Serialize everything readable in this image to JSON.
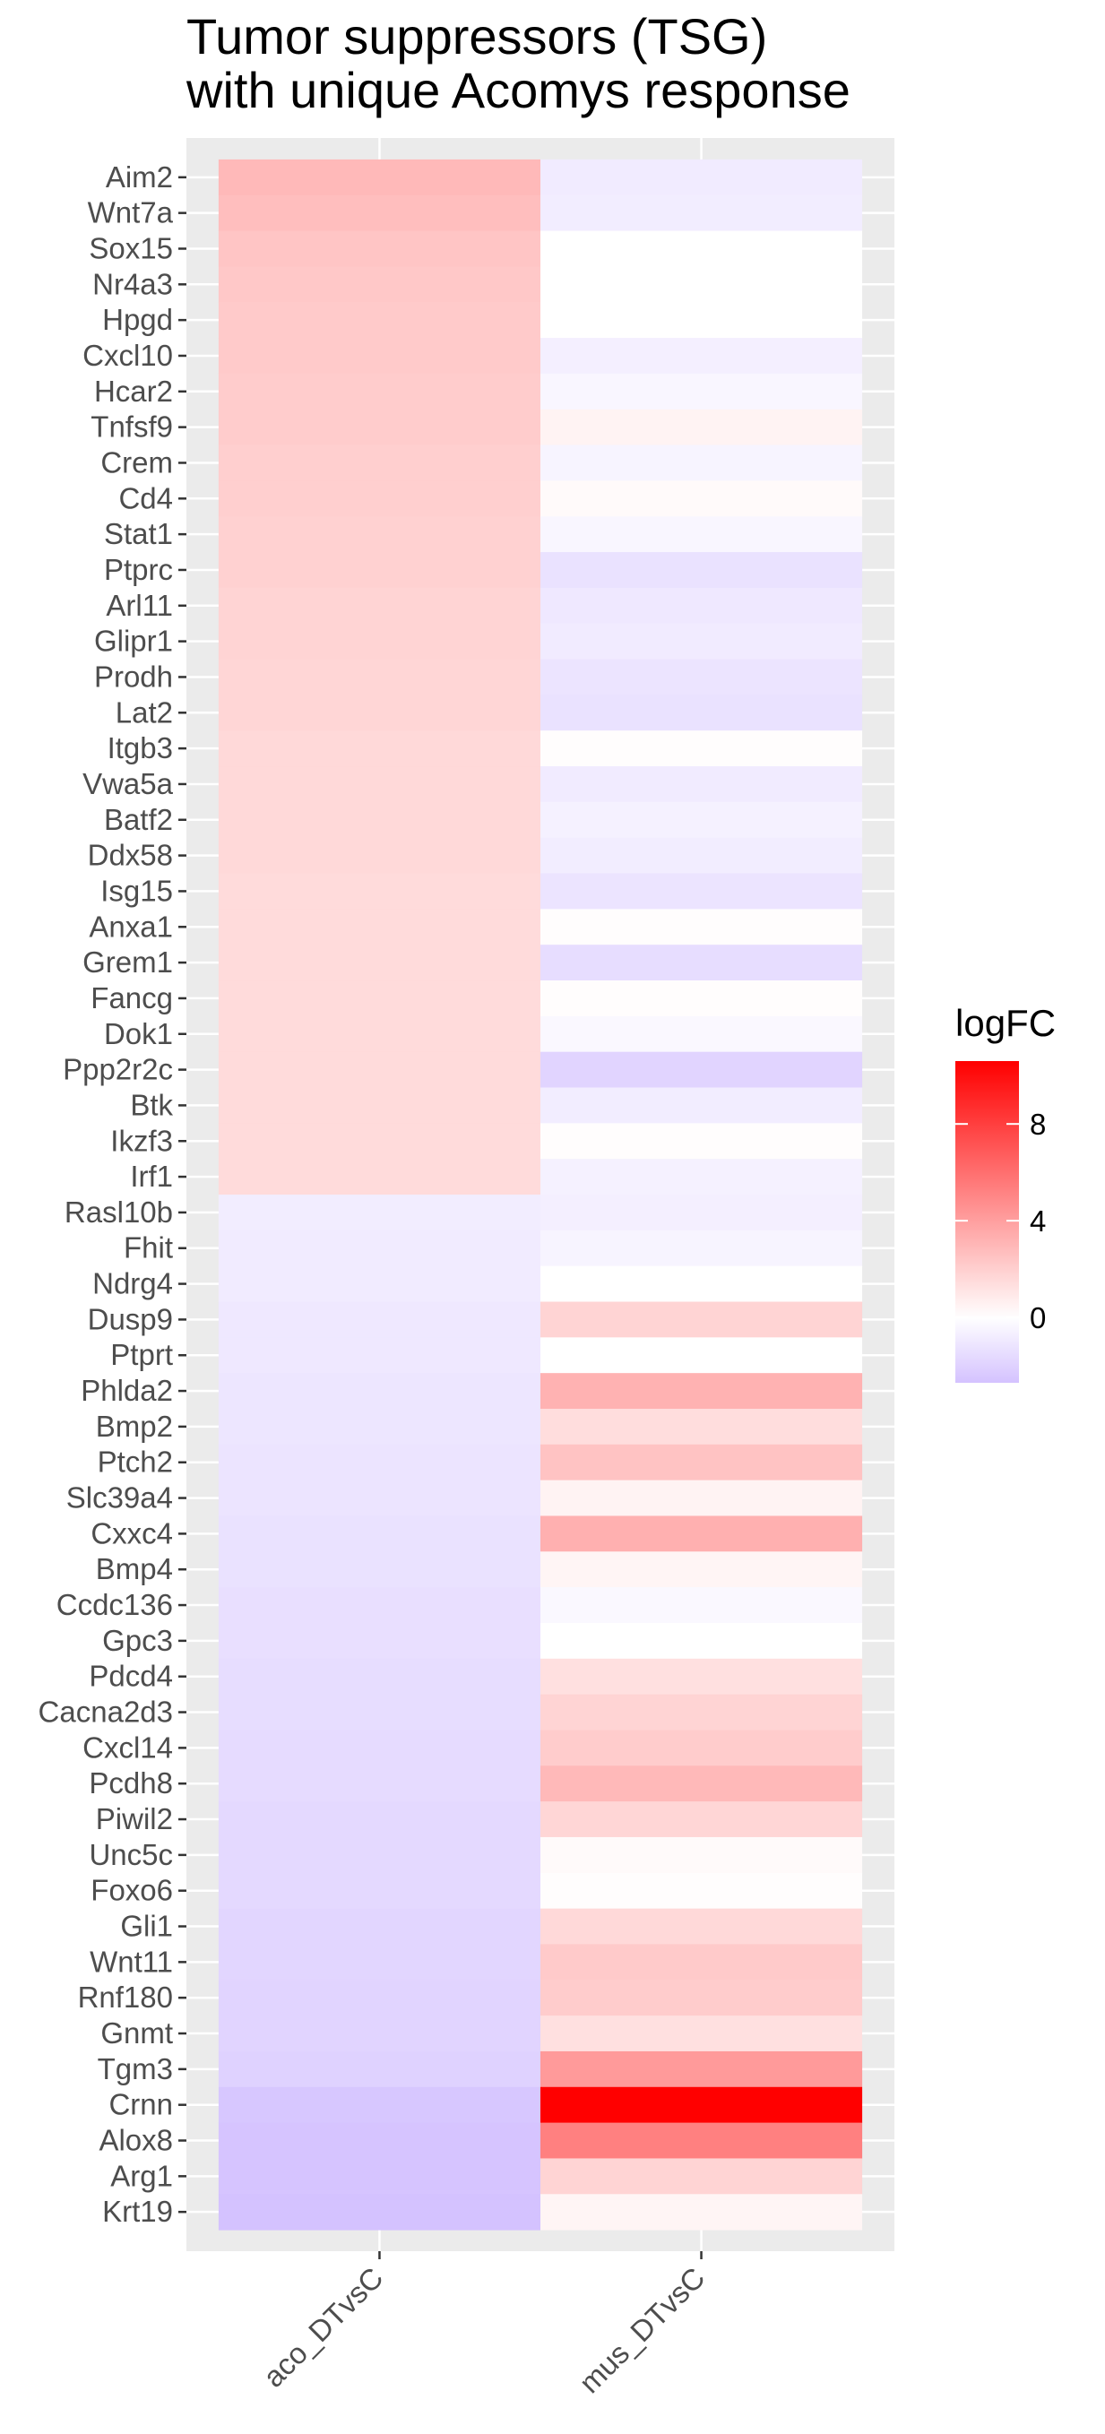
{
  "chart_data": {
    "type": "heatmap",
    "title": "Tumor suppressors (TSG)\nwith unique Acomys response",
    "columns": [
      "aco_DTvsC",
      "mus_DTvsC"
    ],
    "rows": [
      "Aim2",
      "Wnt7a",
      "Sox15",
      "Nr4a3",
      "Hpgd",
      "Cxcl10",
      "Hcar2",
      "Tnfsf9",
      "Crem",
      "Cd4",
      "Stat1",
      "Ptprc",
      "Arl11",
      "Glipr1",
      "Prodh",
      "Lat2",
      "Itgb3",
      "Vwa5a",
      "Batf2",
      "Ddx58",
      "Isg15",
      "Anxa1",
      "Grem1",
      "Fancg",
      "Dok1",
      "Ppp2r2c",
      "Btk",
      "Ikzf3",
      "Irf1",
      "Rasl10b",
      "Fhit",
      "Ndrg4",
      "Dusp9",
      "Ptprt",
      "Phlda2",
      "Bmp2",
      "Ptch2",
      "Slc39a4",
      "Cxxc4",
      "Bmp4",
      "Ccdc136",
      "Gpc3",
      "Pdcd4",
      "Cacna2d3",
      "Cxcl14",
      "Pcdh8",
      "Piwil2",
      "Unc5c",
      "Foxo6",
      "Gli1",
      "Wnt11",
      "Rnf180",
      "Gnmt",
      "Tgm3",
      "Crnn",
      "Alox8",
      "Arg1",
      "Krt19"
    ],
    "values": [
      [
        2.9,
        -0.9
      ],
      [
        2.7,
        -0.8
      ],
      [
        2.4,
        0.0
      ],
      [
        2.3,
        0.0
      ],
      [
        2.2,
        0.0
      ],
      [
        2.2,
        -0.7
      ],
      [
        2.1,
        -0.4
      ],
      [
        2.1,
        0.5
      ],
      [
        2.0,
        -0.5
      ],
      [
        2.0,
        0.2
      ],
      [
        1.9,
        -0.4
      ],
      [
        1.9,
        -1.3
      ],
      [
        1.8,
        -1.0
      ],
      [
        1.8,
        -0.9
      ],
      [
        1.7,
        -1.2
      ],
      [
        1.7,
        -1.3
      ],
      [
        1.6,
        0.1
      ],
      [
        1.6,
        -0.9
      ],
      [
        1.6,
        -0.6
      ],
      [
        1.6,
        -0.8
      ],
      [
        1.5,
        -1.2
      ],
      [
        1.5,
        0.1
      ],
      [
        1.5,
        -1.5
      ],
      [
        1.5,
        0.1
      ],
      [
        1.5,
        -0.3
      ],
      [
        1.5,
        -1.9
      ],
      [
        1.5,
        -0.8
      ],
      [
        1.5,
        0.1
      ],
      [
        1.5,
        -0.6
      ],
      [
        -0.8,
        -0.7
      ],
      [
        -0.9,
        -0.5
      ],
      [
        -0.9,
        0.0
      ],
      [
        -1.0,
        1.8
      ],
      [
        -1.0,
        0.0
      ],
      [
        -1.1,
        3.2
      ],
      [
        -1.1,
        1.4
      ],
      [
        -1.2,
        2.5
      ],
      [
        -1.2,
        0.5
      ],
      [
        -1.3,
        3.3
      ],
      [
        -1.3,
        0.4
      ],
      [
        -1.4,
        -0.3
      ],
      [
        -1.4,
        0.0
      ],
      [
        -1.5,
        1.3
      ],
      [
        -1.5,
        1.8
      ],
      [
        -1.6,
        2.1
      ],
      [
        -1.6,
        2.9
      ],
      [
        -1.7,
        1.7
      ],
      [
        -1.7,
        0.2
      ],
      [
        -1.7,
        0.1
      ],
      [
        -1.8,
        1.6
      ],
      [
        -1.8,
        2.2
      ],
      [
        -1.9,
        2.1
      ],
      [
        -1.9,
        1.3
      ],
      [
        -2.0,
        4.2
      ],
      [
        -2.5,
        10.6
      ],
      [
        -2.6,
        5.3
      ],
      [
        -2.6,
        1.8
      ],
      [
        -2.7,
        0.4
      ]
    ],
    "legend": {
      "title": "logFC",
      "ticks": [
        0,
        4,
        8
      ],
      "range": [
        -2.7,
        10.6
      ],
      "low_color": "#d4c2ff",
      "mid_color": "#ffffff",
      "high_color": "#ff0000",
      "placement": "right"
    },
    "panel_background": "#ebebeb",
    "grid": true
  }
}
